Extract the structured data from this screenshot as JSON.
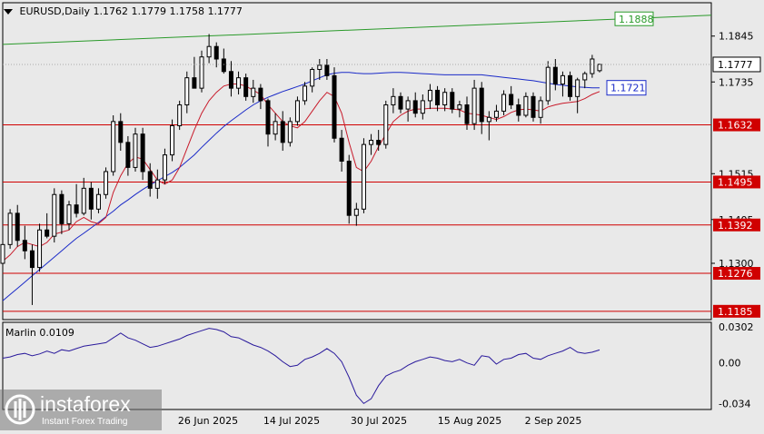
{
  "header": {
    "symbol": "EURUSD,Daily",
    "ohlc": "1.1762 1.1779 1.1758 1.1777"
  },
  "oscillator": {
    "label": "Marlin 0.0109"
  },
  "logo": {
    "name": "instaforex",
    "tagline": "Instant Forex Trading"
  },
  "colors": {
    "background": "#e9e9e9",
    "horizontal_level": "#d00000",
    "trendline": "#2a9a2a",
    "slow_ma": "#1a2ac8",
    "fast_ma": "#c81a2a",
    "oscillator": "#2a1a9c",
    "current_price_tag": "#ffffff"
  },
  "chart_data": [
    {
      "type": "candlestick",
      "symbol": "EURUSD",
      "timeframe": "Daily",
      "ohlc_last": {
        "open": 1.1762,
        "high": 1.1779,
        "low": 1.1758,
        "close": 1.1777
      },
      "y_ticks": [
        "1.1845",
        "1.1735",
        "1.1515",
        "1.1405",
        "1.1300"
      ],
      "x_ticks": [
        "26 Jun 2025",
        "14 Jul 2025",
        "30 Jul 2025",
        "15 Aug 2025",
        "2 Sep 2025"
      ],
      "ylim": [
        1.1165,
        1.1925
      ],
      "levels": [
        {
          "value": 1.1632,
          "label": "1.1632"
        },
        {
          "value": 1.1495,
          "label": "1.1495"
        },
        {
          "value": 1.1392,
          "label": "1.1392"
        },
        {
          "value": 1.1276,
          "label": "1.1276"
        },
        {
          "value": 1.1185,
          "label": "1.1185"
        }
      ],
      "trendline": {
        "label": "1.1888",
        "start_value": 1.1825,
        "end_value": 1.1895
      },
      "current_price": {
        "value": 1.1777,
        "label": "1.1777"
      },
      "ma_label": {
        "value": 1.1721,
        "label": "1.1721"
      },
      "candles": [
        [
          1.13,
          1.1355,
          1.129,
          1.1345
        ],
        [
          1.1345,
          1.143,
          1.1335,
          1.142
        ],
        [
          1.142,
          1.144,
          1.134,
          1.1355
        ],
        [
          1.1355,
          1.139,
          1.131,
          1.133
        ],
        [
          1.133,
          1.1345,
          1.12,
          1.129
        ],
        [
          1.129,
          1.1395,
          1.128,
          1.138
        ],
        [
          1.138,
          1.142,
          1.136,
          1.1365
        ],
        [
          1.1365,
          1.148,
          1.135,
          1.1465
        ],
        [
          1.1465,
          1.1475,
          1.137,
          1.1395
        ],
        [
          1.1395,
          1.145,
          1.138,
          1.144
        ],
        [
          1.144,
          1.149,
          1.141,
          1.142
        ],
        [
          1.142,
          1.1505,
          1.1415,
          1.148
        ],
        [
          1.148,
          1.1495,
          1.1405,
          1.143
        ],
        [
          1.143,
          1.148,
          1.142,
          1.1465
        ],
        [
          1.1465,
          1.153,
          1.1455,
          1.152
        ],
        [
          1.152,
          1.1655,
          1.151,
          1.164
        ],
        [
          1.164,
          1.166,
          1.157,
          1.159
        ],
        [
          1.159,
          1.1605,
          1.151,
          1.153
        ],
        [
          1.153,
          1.1625,
          1.152,
          1.161
        ],
        [
          1.161,
          1.1625,
          1.15,
          1.152
        ],
        [
          1.152,
          1.154,
          1.146,
          1.148
        ],
        [
          1.148,
          1.1525,
          1.1455,
          1.15
        ],
        [
          1.15,
          1.1575,
          1.149,
          1.156
        ],
        [
          1.156,
          1.1645,
          1.1545,
          1.163
        ],
        [
          1.163,
          1.169,
          1.162,
          1.168
        ],
        [
          1.168,
          1.176,
          1.166,
          1.1745
        ],
        [
          1.1745,
          1.1795,
          1.172,
          1.172
        ],
        [
          1.172,
          1.181,
          1.171,
          1.1795
        ],
        [
          1.1795,
          1.185,
          1.178,
          1.182
        ],
        [
          1.182,
          1.183,
          1.177,
          1.179
        ],
        [
          1.179,
          1.1815,
          1.1755,
          1.176
        ],
        [
          1.176,
          1.1785,
          1.17,
          1.172
        ],
        [
          1.172,
          1.176,
          1.1705,
          1.1745
        ],
        [
          1.1745,
          1.1755,
          1.169,
          1.17
        ],
        [
          1.17,
          1.174,
          1.1685,
          1.172
        ],
        [
          1.172,
          1.173,
          1.167,
          1.169
        ],
        [
          1.169,
          1.1695,
          1.158,
          1.161
        ],
        [
          1.161,
          1.166,
          1.1595,
          1.164
        ],
        [
          1.164,
          1.1665,
          1.157,
          1.159
        ],
        [
          1.159,
          1.165,
          1.158,
          1.164
        ],
        [
          1.164,
          1.17,
          1.163,
          1.169
        ],
        [
          1.169,
          1.1735,
          1.168,
          1.1725
        ],
        [
          1.1725,
          1.177,
          1.171,
          1.1765
        ],
        [
          1.1765,
          1.179,
          1.174,
          1.1775
        ],
        [
          1.1775,
          1.179,
          1.174,
          1.175
        ],
        [
          1.175,
          1.177,
          1.159,
          1.16
        ],
        [
          1.16,
          1.162,
          1.152,
          1.1545
        ],
        [
          1.1545,
          1.156,
          1.1395,
          1.1415
        ],
        [
          1.1415,
          1.1445,
          1.139,
          1.143
        ],
        [
          1.143,
          1.16,
          1.142,
          1.1585
        ],
        [
          1.1585,
          1.161,
          1.156,
          1.1595
        ],
        [
          1.1595,
          1.162,
          1.157,
          1.1585
        ],
        [
          1.1585,
          1.169,
          1.1575,
          1.168
        ],
        [
          1.168,
          1.172,
          1.166,
          1.17
        ],
        [
          1.17,
          1.171,
          1.166,
          1.167
        ],
        [
          1.167,
          1.17,
          1.164,
          1.169
        ],
        [
          1.169,
          1.171,
          1.165,
          1.166
        ],
        [
          1.166,
          1.1705,
          1.1645,
          1.169
        ],
        [
          1.169,
          1.173,
          1.167,
          1.1715
        ],
        [
          1.1715,
          1.1725,
          1.1665,
          1.168
        ],
        [
          1.168,
          1.172,
          1.1665,
          1.171
        ],
        [
          1.171,
          1.172,
          1.166,
          1.167
        ],
        [
          1.167,
          1.169,
          1.165,
          1.168
        ],
        [
          1.168,
          1.17,
          1.162,
          1.1635
        ],
        [
          1.1635,
          1.174,
          1.162,
          1.172
        ],
        [
          1.172,
          1.1735,
          1.161,
          1.164
        ],
        [
          1.164,
          1.1665,
          1.1595,
          1.165
        ],
        [
          1.165,
          1.168,
          1.164,
          1.1665
        ],
        [
          1.1665,
          1.1715,
          1.1655,
          1.1705
        ],
        [
          1.1705,
          1.1725,
          1.167,
          1.168
        ],
        [
          1.168,
          1.1695,
          1.164,
          1.1655
        ],
        [
          1.1655,
          1.171,
          1.165,
          1.17
        ],
        [
          1.17,
          1.171,
          1.164,
          1.165
        ],
        [
          1.165,
          1.17,
          1.1635,
          1.169
        ],
        [
          1.169,
          1.1785,
          1.168,
          1.177
        ],
        [
          1.177,
          1.179,
          1.1715,
          1.173
        ],
        [
          1.173,
          1.176,
          1.17,
          1.175
        ],
        [
          1.175,
          1.176,
          1.169,
          1.17
        ],
        [
          1.17,
          1.1745,
          1.166,
          1.174
        ],
        [
          1.174,
          1.176,
          1.172,
          1.1755
        ],
        [
          1.1755,
          1.18,
          1.1745,
          1.179
        ],
        [
          1.1762,
          1.1779,
          1.1758,
          1.1777
        ]
      ],
      "slow_ma": [
        1.121,
        1.1225,
        1.124,
        1.1255,
        1.127,
        1.1285,
        1.13,
        1.1315,
        1.133,
        1.1345,
        1.136,
        1.1372,
        1.1385,
        1.1398,
        1.1412,
        1.1425,
        1.144,
        1.1452,
        1.1465,
        1.1477,
        1.1488,
        1.1498,
        1.1508,
        1.1518,
        1.153,
        1.1545,
        1.156,
        1.1578,
        1.1595,
        1.1612,
        1.1628,
        1.1642,
        1.1655,
        1.1668,
        1.168,
        1.169,
        1.1698,
        1.1705,
        1.1712,
        1.1718,
        1.1724,
        1.173,
        1.1738,
        1.1745,
        1.1752,
        1.1756,
        1.1758,
        1.1758,
        1.1756,
        1.1755,
        1.1755,
        1.1756,
        1.1757,
        1.1758,
        1.1758,
        1.1757,
        1.1756,
        1.1755,
        1.1754,
        1.1753,
        1.1752,
        1.1752,
        1.1752,
        1.1752,
        1.1752,
        1.1752,
        1.175,
        1.1748,
        1.1746,
        1.1744,
        1.1742,
        1.174,
        1.1738,
        1.1735,
        1.1732,
        1.1729,
        1.1727,
        1.1725,
        1.1723,
        1.1722,
        1.1721,
        1.1721
      ],
      "fast_ma": [
        1.1305,
        1.132,
        1.134,
        1.135,
        1.1345,
        1.134,
        1.135,
        1.137,
        1.1375,
        1.138,
        1.14,
        1.141,
        1.14,
        1.1395,
        1.141,
        1.147,
        1.151,
        1.154,
        1.1555,
        1.155,
        1.1525,
        1.15,
        1.149,
        1.15,
        1.153,
        1.1575,
        1.162,
        1.166,
        1.169,
        1.171,
        1.1725,
        1.173,
        1.173,
        1.1725,
        1.1715,
        1.1705,
        1.168,
        1.166,
        1.164,
        1.163,
        1.1625,
        1.164,
        1.1665,
        1.169,
        1.171,
        1.17,
        1.166,
        1.159,
        1.153,
        1.152,
        1.1545,
        1.158,
        1.161,
        1.164,
        1.1655,
        1.1665,
        1.167,
        1.167,
        1.1672,
        1.1672,
        1.1672,
        1.167,
        1.1668,
        1.166,
        1.1658,
        1.1655,
        1.165,
        1.1645,
        1.1652,
        1.1662,
        1.1668,
        1.167,
        1.1668,
        1.1665,
        1.1675,
        1.168,
        1.1684,
        1.1686,
        1.1688,
        1.1695,
        1.1705,
        1.1712
      ]
    },
    {
      "type": "line",
      "title": "Marlin 0.0109",
      "y_ticks": [
        "0.0302",
        "0.00",
        "-0.034"
      ],
      "ylim": [
        -0.039,
        0.034
      ],
      "values": [
        0.004,
        0.005,
        0.007,
        0.008,
        0.006,
        0.0075,
        0.01,
        0.008,
        0.011,
        0.01,
        0.012,
        0.014,
        0.015,
        0.016,
        0.017,
        0.021,
        0.025,
        0.021,
        0.019,
        0.016,
        0.013,
        0.014,
        0.016,
        0.018,
        0.02,
        0.023,
        0.025,
        0.027,
        0.029,
        0.028,
        0.026,
        0.022,
        0.021,
        0.018,
        0.015,
        0.013,
        0.01,
        0.006,
        0.001,
        -0.003,
        -0.002,
        0.003,
        0.005,
        0.008,
        0.012,
        0.008,
        0.001,
        -0.012,
        -0.027,
        -0.034,
        -0.03,
        -0.019,
        -0.011,
        -0.008,
        -0.006,
        -0.002,
        0.001,
        0.003,
        0.005,
        0.004,
        0.002,
        0.001,
        0.003,
        0.0,
        -0.002,
        0.006,
        0.005,
        -0.001,
        0.003,
        0.004,
        0.007,
        0.008,
        0.004,
        0.003,
        0.006,
        0.008,
        0.01,
        0.013,
        0.009,
        0.008,
        0.009,
        0.0109
      ]
    }
  ]
}
